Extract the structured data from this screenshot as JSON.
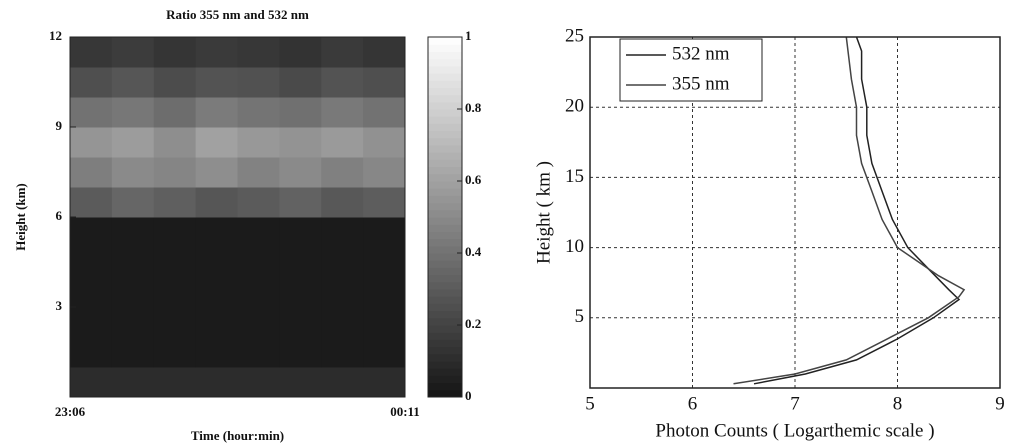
{
  "chart_data": [
    {
      "type": "heatmap",
      "title": "Ratio 355 nm and 532 nm",
      "xlabel": "Time (hour:min)",
      "ylabel": "Height (km)",
      "x_labels": [
        "23:06",
        "00:11"
      ],
      "y_bins": [
        0,
        1,
        2,
        3,
        4,
        5,
        6,
        7,
        8,
        9,
        10,
        11,
        12
      ],
      "values": [
        [
          0.1,
          0.1,
          0.1,
          0.1,
          0.1,
          0.1,
          0.1,
          0.1
        ],
        [
          0.03,
          0.03,
          0.03,
          0.03,
          0.03,
          0.03,
          0.03,
          0.03
        ],
        [
          0.03,
          0.03,
          0.03,
          0.03,
          0.03,
          0.03,
          0.03,
          0.03
        ],
        [
          0.03,
          0.03,
          0.03,
          0.03,
          0.03,
          0.03,
          0.03,
          0.03
        ],
        [
          0.03,
          0.03,
          0.03,
          0.03,
          0.03,
          0.03,
          0.03,
          0.03
        ],
        [
          0.03,
          0.03,
          0.03,
          0.03,
          0.03,
          0.03,
          0.03,
          0.03
        ],
        [
          0.3,
          0.35,
          0.32,
          0.28,
          0.3,
          0.33,
          0.29,
          0.31
        ],
        [
          0.45,
          0.5,
          0.48,
          0.52,
          0.47,
          0.5,
          0.46,
          0.49
        ],
        [
          0.55,
          0.58,
          0.52,
          0.6,
          0.56,
          0.54,
          0.57,
          0.53
        ],
        [
          0.4,
          0.42,
          0.38,
          0.44,
          0.41,
          0.39,
          0.43,
          0.4
        ],
        [
          0.25,
          0.28,
          0.24,
          0.27,
          0.26,
          0.23,
          0.27,
          0.25
        ],
        [
          0.15,
          0.17,
          0.14,
          0.16,
          0.15,
          0.13,
          0.16,
          0.14
        ]
      ],
      "ylim": [
        0,
        12
      ],
      "yticks": [
        3,
        6,
        9,
        12
      ],
      "clim": [
        0,
        1
      ],
      "colorbar_ticks": [
        0,
        0.2,
        0.4,
        0.6,
        0.8,
        1
      ]
    },
    {
      "type": "line",
      "xlabel": "Photon Counts ( Logarthemic scale )",
      "ylabel": "Height ( km )",
      "xlim": [
        5,
        9
      ],
      "xticks": [
        5,
        6,
        7,
        8,
        9
      ],
      "ylim": [
        0,
        25
      ],
      "yticks": [
        5,
        10,
        15,
        20,
        25
      ],
      "grid": true,
      "legend": "top-left",
      "series": [
        {
          "name": "532 nm",
          "color": "#222222",
          "x": [
            6.6,
            7.1,
            7.6,
            8.0,
            8.35,
            8.6,
            8.5,
            8.3,
            8.1,
            7.95,
            7.85,
            7.75,
            7.7,
            7.7,
            7.65,
            7.65,
            7.6
          ],
          "y": [
            0.3,
            1,
            2,
            3.5,
            5,
            6.3,
            7,
            8.5,
            10,
            12,
            14,
            16,
            18,
            20,
            22,
            24,
            25
          ]
        },
        {
          "name": "355 nm",
          "color": "#444444",
          "x": [
            6.4,
            7.0,
            7.5,
            7.9,
            8.3,
            8.6,
            8.65,
            8.4,
            8.2,
            8.0,
            7.85,
            7.75,
            7.65,
            7.6,
            7.6,
            7.55,
            7.5
          ],
          "y": [
            0.3,
            1,
            2,
            3.5,
            5,
            6.5,
            7,
            8,
            9,
            10,
            12,
            14,
            16,
            18,
            20,
            22,
            25
          ]
        }
      ]
    }
  ]
}
